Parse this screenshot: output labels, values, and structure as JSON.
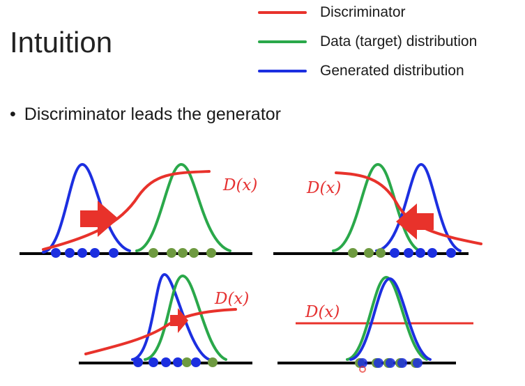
{
  "slide": {
    "title": "Intuition",
    "bullet_symbol": "•",
    "bullet_text": "Discriminator leads the generator"
  },
  "legend": [
    {
      "label": "Discriminator",
      "color": "#e8322b"
    },
    {
      "label": "Data (target) distribution",
      "color": "#2aa84a"
    },
    {
      "label": "Generated distribution",
      "color": "#1c2fe0"
    }
  ],
  "colors": {
    "discriminator": "#e8322b",
    "data": "#2aa84a",
    "generated": "#1c2fe0",
    "data_point": "#6e9a40",
    "generated_point": "#1c2fe0",
    "axis": "#000000"
  },
  "panels": [
    {
      "discriminator_label": "D(x)"
    },
    {
      "discriminator_label": "D(x)"
    },
    {
      "discriminator_label": "D(x)"
    },
    {
      "discriminator_label": "D(x)"
    }
  ]
}
